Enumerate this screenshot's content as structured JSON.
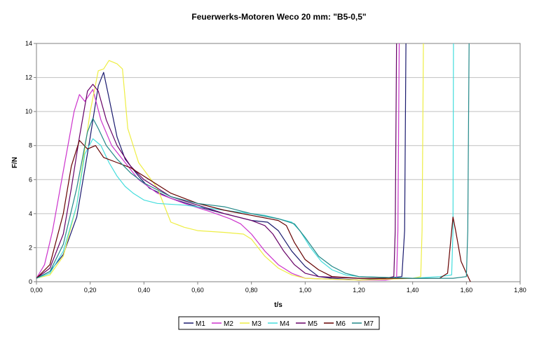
{
  "chart_data": {
    "type": "line",
    "title": "Feuerwerks-Motoren Weco 20 mm: \"B5-0,5\"",
    "xlabel": "t/s",
    "ylabel": "F/N",
    "xlim": [
      0,
      1.8
    ],
    "ylim": [
      0,
      14
    ],
    "x_ticks": [
      0,
      0.2,
      0.4,
      0.6,
      0.8,
      1.0,
      1.2,
      1.4,
      1.6,
      1.8
    ],
    "x_tick_labels": [
      "0,00",
      "0,20",
      "0,40",
      "0,60",
      "0,80",
      "1,00",
      "1,20",
      "1,40",
      "1,60",
      "1,80"
    ],
    "y_ticks": [
      0,
      2,
      4,
      6,
      8,
      10,
      12,
      14
    ],
    "y_tick_labels": [
      "0",
      "2",
      "4",
      "6",
      "8",
      "10",
      "12",
      "14"
    ],
    "grid": "horizontal",
    "legend_position": "bottom",
    "series": [
      {
        "name": "M1",
        "color": "#1a1a6e",
        "points": [
          [
            0,
            0.2
          ],
          [
            0.05,
            0.6
          ],
          [
            0.1,
            1.6
          ],
          [
            0.15,
            3.8
          ],
          [
            0.2,
            8.5
          ],
          [
            0.23,
            11.5
          ],
          [
            0.25,
            12.3
          ],
          [
            0.27,
            10.8
          ],
          [
            0.3,
            8.5
          ],
          [
            0.33,
            7.2
          ],
          [
            0.38,
            6.2
          ],
          [
            0.42,
            5.5
          ],
          [
            0.5,
            4.9
          ],
          [
            0.6,
            4.4
          ],
          [
            0.7,
            4.0
          ],
          [
            0.8,
            3.6
          ],
          [
            0.86,
            3.5
          ],
          [
            0.9,
            3.0
          ],
          [
            0.95,
            1.8
          ],
          [
            1.0,
            0.9
          ],
          [
            1.05,
            0.3
          ],
          [
            1.1,
            0.2
          ],
          [
            1.2,
            0.1
          ],
          [
            1.3,
            0.2
          ],
          [
            1.36,
            0.3
          ],
          [
            1.37,
            3
          ],
          [
            1.375,
            14
          ]
        ]
      },
      {
        "name": "M2",
        "color": "#cc33cc",
        "points": [
          [
            0,
            0.2
          ],
          [
            0.03,
            1.0
          ],
          [
            0.06,
            3.0
          ],
          [
            0.1,
            6.5
          ],
          [
            0.14,
            10.0
          ],
          [
            0.16,
            11.0
          ],
          [
            0.18,
            10.6
          ],
          [
            0.21,
            11.3
          ],
          [
            0.24,
            9.5
          ],
          [
            0.28,
            8.0
          ],
          [
            0.33,
            7.0
          ],
          [
            0.38,
            6.0
          ],
          [
            0.45,
            5.2
          ],
          [
            0.55,
            4.6
          ],
          [
            0.65,
            4.1
          ],
          [
            0.72,
            3.7
          ],
          [
            0.76,
            3.4
          ],
          [
            0.8,
            2.8
          ],
          [
            0.85,
            1.8
          ],
          [
            0.9,
            1.0
          ],
          [
            0.95,
            0.5
          ],
          [
            1.0,
            0.2
          ],
          [
            1.2,
            0.1
          ],
          [
            1.3,
            0.1
          ],
          [
            1.34,
            0.2
          ],
          [
            1.345,
            3
          ],
          [
            1.35,
            14
          ]
        ]
      },
      {
        "name": "M3",
        "color": "#eeee44",
        "points": [
          [
            0,
            0.2
          ],
          [
            0.05,
            0.4
          ],
          [
            0.1,
            1.5
          ],
          [
            0.15,
            4.5
          ],
          [
            0.2,
            10.0
          ],
          [
            0.23,
            12.4
          ],
          [
            0.25,
            12.5
          ],
          [
            0.27,
            13.0
          ],
          [
            0.3,
            12.8
          ],
          [
            0.32,
            12.5
          ],
          [
            0.34,
            9.0
          ],
          [
            0.38,
            7.0
          ],
          [
            0.45,
            5.5
          ],
          [
            0.5,
            3.5
          ],
          [
            0.55,
            3.2
          ],
          [
            0.6,
            3.0
          ],
          [
            0.7,
            2.9
          ],
          [
            0.77,
            2.8
          ],
          [
            0.8,
            2.5
          ],
          [
            0.85,
            1.5
          ],
          [
            0.9,
            0.8
          ],
          [
            0.95,
            0.4
          ],
          [
            1.0,
            0.2
          ],
          [
            1.2,
            0.1
          ],
          [
            1.4,
            0.2
          ],
          [
            1.43,
            0.3
          ],
          [
            1.435,
            3
          ],
          [
            1.44,
            14
          ]
        ]
      },
      {
        "name": "M4",
        "color": "#44dddd",
        "points": [
          [
            0,
            0.2
          ],
          [
            0.05,
            0.5
          ],
          [
            0.1,
            1.8
          ],
          [
            0.15,
            4.5
          ],
          [
            0.18,
            7.5
          ],
          [
            0.21,
            8.4
          ],
          [
            0.24,
            8.0
          ],
          [
            0.27,
            7.0
          ],
          [
            0.3,
            6.2
          ],
          [
            0.33,
            5.6
          ],
          [
            0.36,
            5.2
          ],
          [
            0.4,
            4.8
          ],
          [
            0.45,
            4.6
          ],
          [
            0.55,
            4.5
          ],
          [
            0.7,
            4.2
          ],
          [
            0.85,
            3.9
          ],
          [
            0.95,
            3.5
          ],
          [
            0.98,
            3.0
          ],
          [
            1.02,
            2.0
          ],
          [
            1.06,
            1.2
          ],
          [
            1.1,
            0.7
          ],
          [
            1.15,
            0.4
          ],
          [
            1.2,
            0.3
          ],
          [
            1.4,
            0.2
          ],
          [
            1.5,
            0.3
          ],
          [
            1.545,
            0.4
          ],
          [
            1.55,
            3
          ],
          [
            1.552,
            14
          ]
        ]
      },
      {
        "name": "M5",
        "color": "#660066",
        "points": [
          [
            0,
            0.2
          ],
          [
            0.05,
            0.8
          ],
          [
            0.1,
            2.8
          ],
          [
            0.13,
            5.5
          ],
          [
            0.16,
            8.5
          ],
          [
            0.19,
            11.2
          ],
          [
            0.21,
            11.6
          ],
          [
            0.23,
            11.2
          ],
          [
            0.26,
            9.5
          ],
          [
            0.3,
            8.0
          ],
          [
            0.35,
            6.8
          ],
          [
            0.4,
            6.0
          ],
          [
            0.5,
            5.0
          ],
          [
            0.6,
            4.5
          ],
          [
            0.7,
            4.0
          ],
          [
            0.8,
            3.6
          ],
          [
            0.85,
            3.3
          ],
          [
            0.88,
            2.8
          ],
          [
            0.92,
            1.8
          ],
          [
            0.96,
            1.0
          ],
          [
            1.0,
            0.5
          ],
          [
            1.05,
            0.3
          ],
          [
            1.2,
            0.2
          ],
          [
            1.3,
            0.2
          ],
          [
            1.33,
            0.3
          ],
          [
            1.335,
            3
          ],
          [
            1.34,
            14
          ]
        ]
      },
      {
        "name": "M6",
        "color": "#660000",
        "points": [
          [
            0,
            0.2
          ],
          [
            0.05,
            1.0
          ],
          [
            0.1,
            4.0
          ],
          [
            0.13,
            6.8
          ],
          [
            0.16,
            8.3
          ],
          [
            0.19,
            7.8
          ],
          [
            0.22,
            8.0
          ],
          [
            0.25,
            7.3
          ],
          [
            0.3,
            7.0
          ],
          [
            0.35,
            6.7
          ],
          [
            0.4,
            6.2
          ],
          [
            0.5,
            5.2
          ],
          [
            0.6,
            4.6
          ],
          [
            0.7,
            4.2
          ],
          [
            0.8,
            3.9
          ],
          [
            0.9,
            3.6
          ],
          [
            0.93,
            3.3
          ],
          [
            0.96,
            2.3
          ],
          [
            1.0,
            1.3
          ],
          [
            1.05,
            0.7
          ],
          [
            1.1,
            0.3
          ],
          [
            1.2,
            0.2
          ],
          [
            1.4,
            0.2
          ],
          [
            1.5,
            0.2
          ],
          [
            1.53,
            0.5
          ],
          [
            1.55,
            3.8
          ],
          [
            1.56,
            3.0
          ],
          [
            1.58,
            1.2
          ],
          [
            1.6,
            0.5
          ],
          [
            1.615,
            0
          ]
        ]
      },
      {
        "name": "M7",
        "color": "#228888",
        "points": [
          [
            0,
            0.2
          ],
          [
            0.05,
            0.6
          ],
          [
            0.1,
            2.2
          ],
          [
            0.15,
            5.5
          ],
          [
            0.19,
            8.8
          ],
          [
            0.21,
            9.6
          ],
          [
            0.23,
            9.0
          ],
          [
            0.26,
            8.0
          ],
          [
            0.3,
            7.2
          ],
          [
            0.35,
            6.4
          ],
          [
            0.4,
            5.8
          ],
          [
            0.5,
            5.0
          ],
          [
            0.6,
            4.6
          ],
          [
            0.7,
            4.4
          ],
          [
            0.8,
            4.0
          ],
          [
            0.9,
            3.7
          ],
          [
            0.96,
            3.4
          ],
          [
            1.0,
            2.6
          ],
          [
            1.05,
            1.5
          ],
          [
            1.1,
            0.9
          ],
          [
            1.15,
            0.5
          ],
          [
            1.2,
            0.3
          ],
          [
            1.4,
            0.2
          ],
          [
            1.55,
            0.2
          ],
          [
            1.6,
            0.3
          ],
          [
            1.605,
            3
          ],
          [
            1.61,
            14
          ]
        ]
      }
    ]
  }
}
